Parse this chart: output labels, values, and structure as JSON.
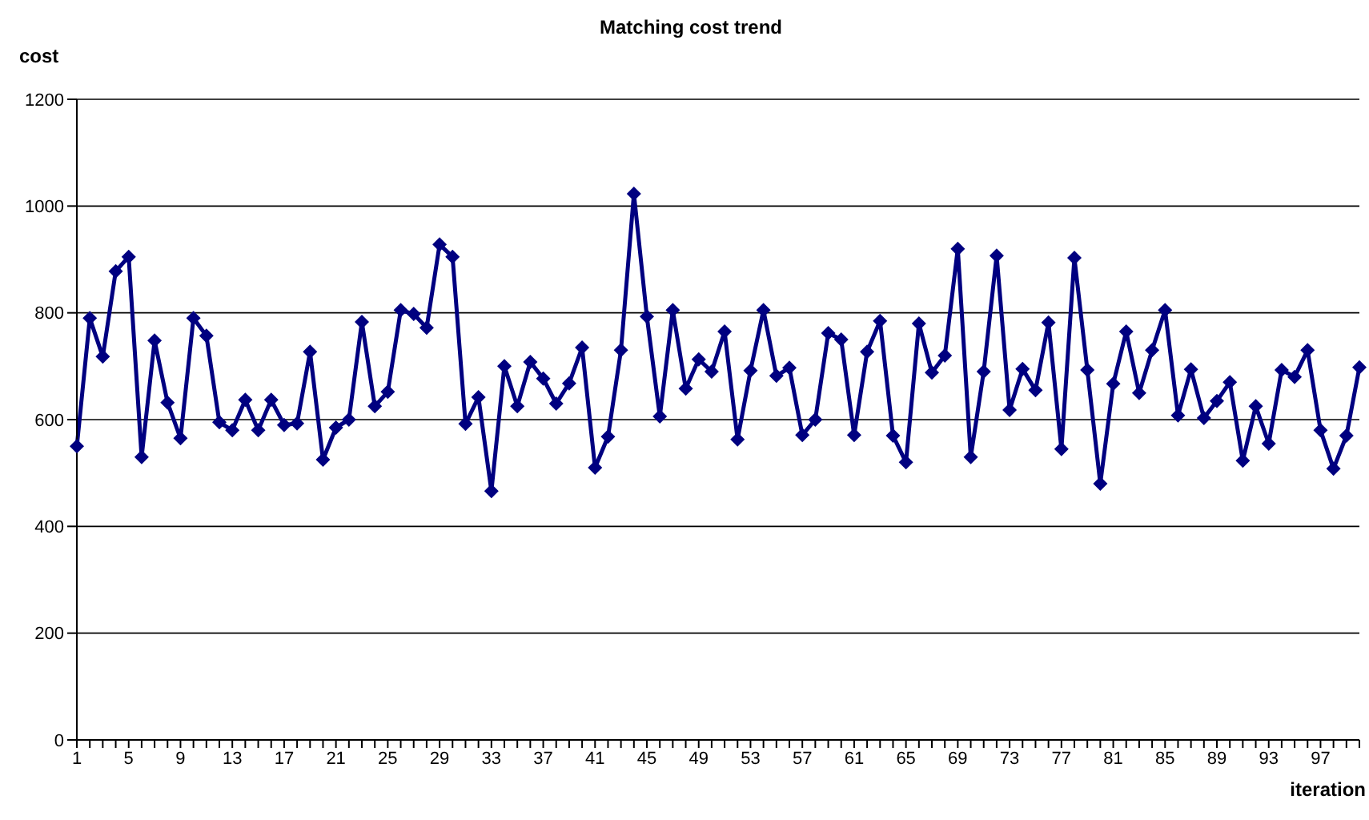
{
  "chart_data": {
    "type": "line",
    "title": "Matching cost trend",
    "xlabel": "iteration",
    "ylabel": "cost",
    "categories": [
      "1",
      null,
      null,
      null,
      "5",
      null,
      null,
      null,
      "9",
      null,
      null,
      null,
      "13",
      null,
      null,
      null,
      "17",
      null,
      null,
      null,
      "21",
      null,
      null,
      null,
      "25",
      null,
      null,
      null,
      "29",
      null,
      null,
      null,
      "33",
      null,
      null,
      null,
      "37",
      null,
      null,
      null,
      "41",
      null,
      null,
      null,
      "45",
      null,
      null,
      null,
      "49",
      null,
      null,
      null,
      "53",
      null,
      null,
      null,
      "57",
      null,
      null,
      null,
      "61",
      null,
      null,
      null,
      "65",
      null,
      null,
      null,
      "69",
      null,
      null,
      null,
      "73",
      null,
      null,
      null,
      "77",
      null,
      null,
      null,
      "81",
      null,
      null,
      null,
      "85",
      null,
      null,
      null,
      "89",
      null,
      null,
      null,
      "93",
      null,
      null,
      null,
      "97",
      null,
      null,
      null
    ],
    "series": [
      {
        "color": "#000080",
        "values": [
          550,
          790,
          718,
          878,
          905,
          530,
          748,
          632,
          565,
          790,
          757,
          595,
          580,
          637,
          580,
          637,
          590,
          593,
          727,
          525,
          585,
          600,
          783,
          625,
          652,
          805,
          798,
          772,
          928,
          905,
          592,
          642,
          466,
          700,
          625,
          708,
          677,
          630,
          668,
          735,
          510,
          568,
          730,
          1023,
          793,
          606,
          805,
          658,
          713,
          690,
          765,
          563,
          692,
          805,
          682,
          697,
          571,
          600,
          762,
          750,
          571,
          727,
          785,
          570,
          520,
          780,
          688,
          720,
          920,
          530,
          690,
          907,
          618,
          695,
          655,
          782,
          545,
          903,
          693,
          480,
          667,
          765,
          650,
          730,
          805,
          608,
          694,
          603,
          635,
          670,
          523,
          625,
          555,
          693,
          680,
          730,
          580,
          508,
          570,
          698
        ]
      }
    ],
    "ylim": [
      0,
      1200
    ],
    "yticks": [
      0,
      200,
      400,
      600,
      800,
      1000,
      1200
    ],
    "grid": "y",
    "marker": "diamond",
    "line_style": "solid"
  }
}
